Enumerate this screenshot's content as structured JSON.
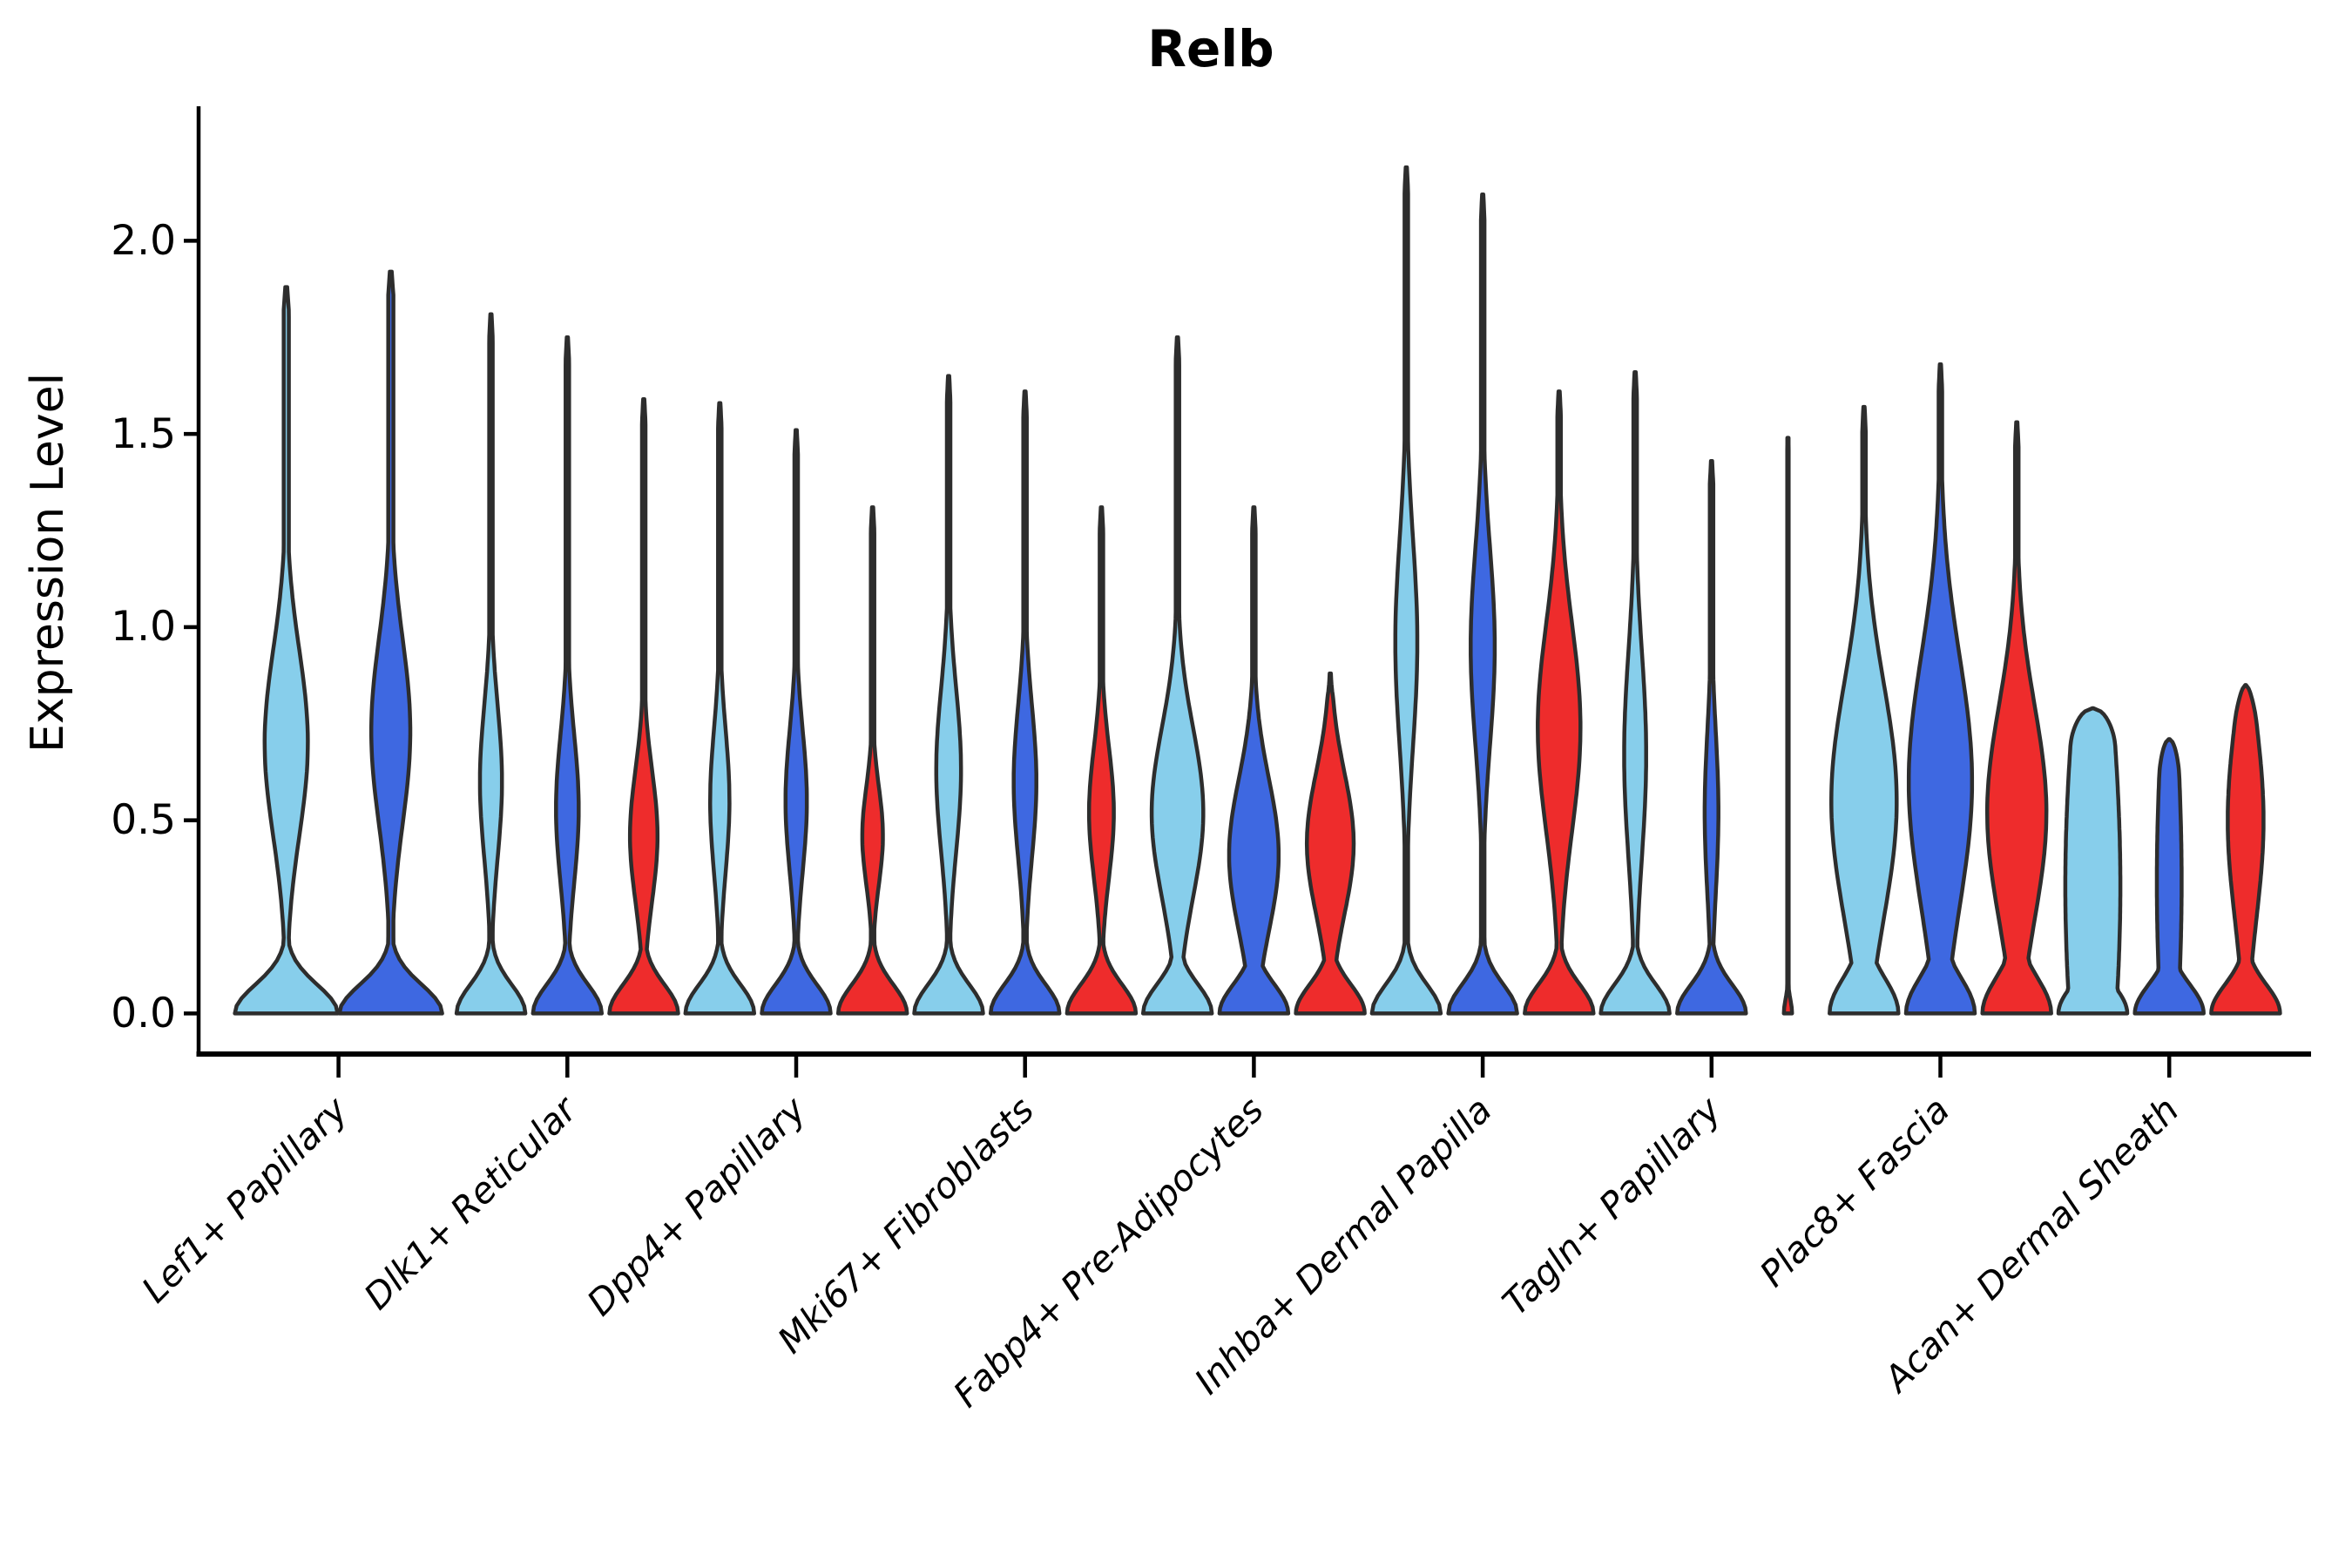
{
  "title": "Relb",
  "axes": {
    "ylabel": "Expression Level",
    "ytick_labels": [
      "0.0",
      "0.5",
      "1.0",
      "1.5",
      "2.0"
    ]
  },
  "palette": {
    "series_fills": [
      "#87CEEB",
      "#3E68E1",
      "#EE2C2C"
    ],
    "outline": "#2D2D2D",
    "axis_color": "#000000"
  },
  "chart_data": {
    "type": "violin",
    "title": "Relb",
    "xlabel": "",
    "ylabel": "Expression Level",
    "ylim": [
      0,
      2.35
    ],
    "yticks": [
      0.0,
      0.5,
      1.0,
      1.5,
      2.0
    ],
    "ytick_labels": [
      "0.0",
      "0.5",
      "1.0",
      "1.5",
      "2.0"
    ],
    "grid": false,
    "legend": "none",
    "categories": [
      "Lef1+ Papillary",
      "Dlk1+ Reticular",
      "Dpp4+ Papillary",
      "Mki67+ Fibroblasts",
      "Fabp4+ Pre-Adipocytes",
      "Inhba+ Dermal Papilla",
      "Tagln+ Papillary",
      "Plac8+ Fascia",
      "Acan+ Dermal Sheath"
    ],
    "series_colors": [
      "#87CEEB",
      "#3E68E1",
      "#EE2C2C"
    ],
    "groups": [
      {
        "category": "Lef1+ Papillary",
        "violins": [
          {
            "color": 0,
            "max": 1.88,
            "bulge_center": 0.7,
            "bulge_spread": 0.34,
            "bulge_amp": 0.42
          },
          {
            "color": 1,
            "max": 1.92,
            "bulge_center": 0.73,
            "bulge_spread": 0.34,
            "bulge_amp": 0.38
          }
        ]
      },
      {
        "category": "Dlk1+ Reticular",
        "violins": [
          {
            "color": 0,
            "max": 1.81,
            "bulge_center": 0.6,
            "bulge_spread": 0.28,
            "bulge_amp": 0.32
          },
          {
            "color": 1,
            "max": 1.75,
            "bulge_center": 0.53,
            "bulge_spread": 0.27,
            "bulge_amp": 0.33
          },
          {
            "color": 2,
            "max": 1.59,
            "bulge_center": 0.46,
            "bulge_spread": 0.24,
            "bulge_amp": 0.4
          }
        ]
      },
      {
        "category": "Dpp4+ Papillary",
        "violins": [
          {
            "color": 0,
            "max": 1.58,
            "bulge_center": 0.55,
            "bulge_spread": 0.26,
            "bulge_amp": 0.28
          },
          {
            "color": 1,
            "max": 1.51,
            "bulge_center": 0.55,
            "bulge_spread": 0.26,
            "bulge_amp": 0.31
          },
          {
            "color": 2,
            "max": 1.31,
            "bulge_center": 0.46,
            "bulge_spread": 0.18,
            "bulge_amp": 0.3
          }
        ]
      },
      {
        "category": "Mki67+ Fibroblasts",
        "violins": [
          {
            "color": 0,
            "max": 1.65,
            "bulge_center": 0.63,
            "bulge_spread": 0.3,
            "bulge_amp": 0.36
          },
          {
            "color": 1,
            "max": 1.61,
            "bulge_center": 0.6,
            "bulge_spread": 0.28,
            "bulge_amp": 0.33
          },
          {
            "color": 2,
            "max": 1.31,
            "bulge_center": 0.52,
            "bulge_spread": 0.24,
            "bulge_amp": 0.36
          }
        ]
      },
      {
        "category": "Fabp4+ Pre-Adipocytes",
        "violins": [
          {
            "color": 0,
            "max": 1.75,
            "bulge_center": 0.52,
            "bulge_spread": 0.31,
            "bulge_amp": 0.75
          },
          {
            "color": 1,
            "max": 1.31,
            "bulge_center": 0.41,
            "bulge_spread": 0.28,
            "bulge_amp": 0.72
          },
          {
            "color": 2,
            "max": 0.88,
            "bulge_center": 0.44,
            "bulge_spread": 0.26,
            "bulge_amp": 0.68
          }
        ]
      },
      {
        "category": "Inhba+ Dermal Papilla",
        "violins": [
          {
            "color": 0,
            "max": 2.19,
            "bulge_center": 0.96,
            "bulge_spread": 0.38,
            "bulge_amp": 0.32
          },
          {
            "color": 1,
            "max": 2.12,
            "bulge_center": 0.95,
            "bulge_spread": 0.36,
            "bulge_amp": 0.35
          },
          {
            "color": 2,
            "max": 1.61,
            "bulge_center": 0.74,
            "bulge_spread": 0.38,
            "bulge_amp": 0.62
          }
        ]
      },
      {
        "category": "Tagln+ Papillary",
        "violins": [
          {
            "color": 0,
            "max": 1.66,
            "bulge_center": 0.67,
            "bulge_spread": 0.38,
            "bulge_amp": 0.32
          },
          {
            "color": 1,
            "max": 1.43,
            "bulge_center": 0.52,
            "bulge_spread": 0.3,
            "bulge_amp": 0.2
          },
          {
            "color": 2,
            "max": 1.49,
            "bulge_amp": 0,
            "stem": 0.02,
            "base_amp": 0.12,
            "base_spread": 0.05
          }
        ]
      },
      {
        "category": "Plac8+ Fascia",
        "violins": [
          {
            "color": 0,
            "max": 1.57,
            "bulge_center": 0.55,
            "bulge_spread": 0.43,
            "bulge_amp": 0.95,
            "base_spread": 0.13
          },
          {
            "color": 1,
            "max": 1.68,
            "bulge_center": 0.6,
            "bulge_spread": 0.46,
            "bulge_amp": 0.92,
            "base_spread": 0.13
          },
          {
            "color": 2,
            "max": 1.53,
            "bulge_center": 0.52,
            "bulge_spread": 0.39,
            "bulge_amp": 0.86,
            "base_spread": 0.13
          }
        ]
      },
      {
        "category": "Acan+ Dermal Sheath",
        "violins": [
          {
            "color": 0,
            "max": 0.79,
            "bulge_center": 0.33,
            "bulge_spread": 0.8,
            "bulge_amp": 0.8,
            "cap": "flat"
          },
          {
            "color": 1,
            "max": 0.71,
            "bulge_center": 0.34,
            "bulge_spread": 0.6,
            "bulge_amp": 0.36,
            "cap": "flat"
          },
          {
            "color": 2,
            "max": 0.85,
            "bulge_center": 0.5,
            "bulge_spread": 0.36,
            "bulge_amp": 0.52,
            "cap": "flat"
          }
        ]
      }
    ]
  }
}
